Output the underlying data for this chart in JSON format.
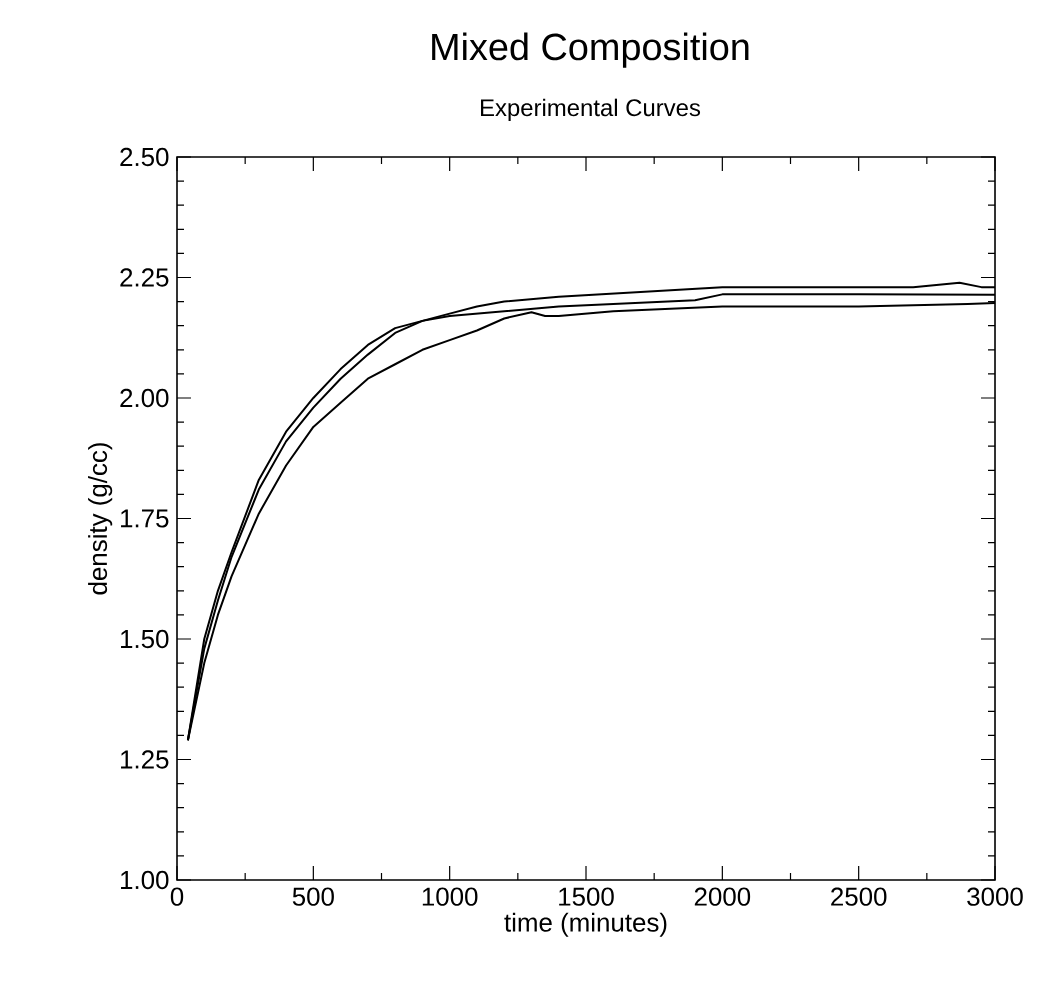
{
  "chart_data": {
    "type": "line",
    "title": "Mixed Composition",
    "subtitle": "Experimental Curves",
    "xlabel": "time (minutes)",
    "ylabel": "density (g/cc)",
    "xlim": [
      0,
      3000
    ],
    "ylim": [
      1.0,
      2.5
    ],
    "xticks": [
      0,
      {
        "value": 250,
        "label": null
      },
      500,
      {
        "value": 750,
        "label": null
      },
      1000,
      {
        "value": 1250,
        "label": null
      },
      1500,
      {
        "value": 1750,
        "label": null
      },
      2000,
      {
        "value": 2250,
        "label": null
      },
      2500,
      {
        "value": 2750,
        "label": null
      },
      3000
    ],
    "yticks": [
      {
        "value": 1.0,
        "label": "1.00"
      },
      {
        "value": 1.05,
        "label": null
      },
      {
        "value": 1.1,
        "label": null
      },
      {
        "value": 1.15,
        "label": null
      },
      {
        "value": 1.2,
        "label": null
      },
      {
        "value": 1.25,
        "label": "1.25"
      },
      {
        "value": 1.3,
        "label": null
      },
      {
        "value": 1.35,
        "label": null
      },
      {
        "value": 1.4,
        "label": null
      },
      {
        "value": 1.45,
        "label": null
      },
      {
        "value": 1.5,
        "label": "1.50"
      },
      {
        "value": 1.55,
        "label": null
      },
      {
        "value": 1.6,
        "label": null
      },
      {
        "value": 1.65,
        "label": null
      },
      {
        "value": 1.7,
        "label": null
      },
      {
        "value": 1.75,
        "label": "1.75"
      },
      {
        "value": 1.8,
        "label": null
      },
      {
        "value": 1.85,
        "label": null
      },
      {
        "value": 1.9,
        "label": null
      },
      {
        "value": 1.95,
        "label": null
      },
      {
        "value": 2.0,
        "label": "2.00"
      },
      {
        "value": 2.05,
        "label": null
      },
      {
        "value": 2.1,
        "label": null
      },
      {
        "value": 2.15,
        "label": null
      },
      {
        "value": 2.2,
        "label": null
      },
      {
        "value": 2.25,
        "label": "2.25"
      },
      {
        "value": 2.3,
        "label": null
      },
      {
        "value": 2.35,
        "label": null
      },
      {
        "value": 2.4,
        "label": null
      },
      {
        "value": 2.45,
        "label": null
      },
      {
        "value": 2.5,
        "label": "2.50"
      }
    ],
    "grid": false,
    "marker": "none",
    "line_style": "solid",
    "series": [
      {
        "color": "#000000",
        "x": [
          40,
          100,
          150,
          200,
          300,
          400,
          500,
          600,
          700,
          800,
          900,
          1000,
          1200,
          1400,
          1600,
          1800,
          1900,
          2000,
          2500,
          3000
        ],
        "values": [
          1.29,
          1.5,
          1.6,
          1.68,
          1.83,
          1.93,
          2.0,
          2.06,
          2.11,
          2.145,
          2.16,
          2.17,
          2.18,
          2.19,
          2.195,
          2.2,
          2.203,
          2.215,
          2.215,
          2.214
        ]
      },
      {
        "color": "#000000",
        "x": [
          40,
          100,
          150,
          200,
          300,
          400,
          500,
          600,
          700,
          800,
          900,
          1000,
          1100,
          1200,
          1400,
          1700,
          2000,
          2500,
          2700,
          2870,
          2950,
          3000
        ],
        "values": [
          1.29,
          1.48,
          1.58,
          1.67,
          1.81,
          1.91,
          1.98,
          2.04,
          2.09,
          2.135,
          2.16,
          2.175,
          2.19,
          2.2,
          2.21,
          2.22,
          2.23,
          2.23,
          2.23,
          2.239,
          2.23,
          2.23
        ]
      },
      {
        "color": "#000000",
        "x": [
          40,
          100,
          150,
          200,
          300,
          400,
          500,
          600,
          700,
          800,
          900,
          1000,
          1100,
          1200,
          1300,
          1350,
          1400,
          1600,
          2000,
          2500,
          2900,
          3000
        ],
        "values": [
          1.29,
          1.45,
          1.55,
          1.63,
          1.76,
          1.86,
          1.94,
          1.99,
          2.04,
          2.07,
          2.1,
          2.12,
          2.14,
          2.165,
          2.178,
          2.17,
          2.17,
          2.18,
          2.19,
          2.19,
          2.195,
          2.197
        ]
      }
    ]
  }
}
